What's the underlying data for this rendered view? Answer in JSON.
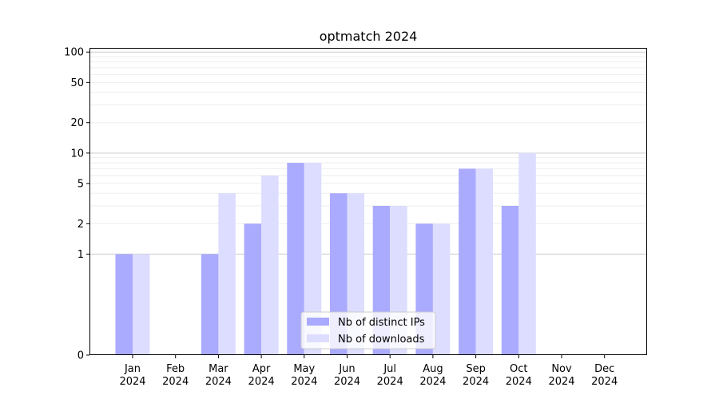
{
  "chart_data": {
    "type": "bar",
    "title": "optmatch 2024",
    "xlabel": "",
    "ylabel": "",
    "yscale": "symlog",
    "ylim": [
      0,
      110
    ],
    "yticks": [
      "0",
      "1",
      "2",
      "5",
      "10",
      "20",
      "50",
      "100"
    ],
    "grid": "horizontal",
    "legend_position": "lower-center",
    "categories": [
      {
        "month": "Jan",
        "year": "2024"
      },
      {
        "month": "Feb",
        "year": "2024"
      },
      {
        "month": "Mar",
        "year": "2024"
      },
      {
        "month": "Apr",
        "year": "2024"
      },
      {
        "month": "May",
        "year": "2024"
      },
      {
        "month": "Jun",
        "year": "2024"
      },
      {
        "month": "Jul",
        "year": "2024"
      },
      {
        "month": "Aug",
        "year": "2024"
      },
      {
        "month": "Sep",
        "year": "2024"
      },
      {
        "month": "Oct",
        "year": "2024"
      },
      {
        "month": "Nov",
        "year": "2024"
      },
      {
        "month": "Dec",
        "year": "2024"
      }
    ],
    "series": [
      {
        "name": "Nb of distinct IPs",
        "color": "#aaaaff",
        "values": [
          1,
          0,
          1,
          2,
          8,
          4,
          3,
          2,
          7,
          3,
          0,
          0
        ]
      },
      {
        "name": "Nb of downloads",
        "color": "#ddddff",
        "values": [
          1,
          0,
          4,
          6,
          8,
          4,
          3,
          2,
          7,
          10,
          0,
          0
        ]
      }
    ]
  }
}
